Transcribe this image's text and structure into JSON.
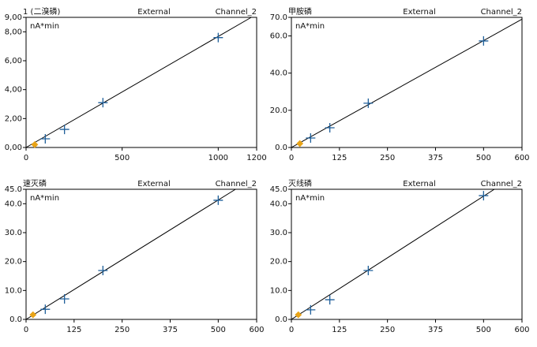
{
  "chart_data": [
    {
      "type": "scatter",
      "title": "1 (二溴磷)",
      "method": "External",
      "channel": "Channel_2",
      "ylabel": "nA*min",
      "xlim": [
        0,
        1200
      ],
      "xticks": [
        0,
        500,
        1000,
        1200
      ],
      "ylim": [
        0,
        9
      ],
      "yticks": [
        {
          "value": 0,
          "label": "0,00"
        },
        {
          "value": 2,
          "label": "2,00"
        },
        {
          "value": 4,
          "label": "4,00"
        },
        {
          "value": 6,
          "label": "6,00"
        },
        {
          "value": 8,
          "label": "8,00"
        },
        {
          "value": 9,
          "label": "9,00"
        }
      ],
      "series": [
        {
          "color": "#1f5f9a",
          "x": [
            100,
            200,
            400,
            1000
          ],
          "values": [
            0.6,
            1.25,
            3.1,
            7.6
          ]
        },
        {
          "color": "#e8a317",
          "x": [
            45
          ],
          "values": [
            0.2
          ]
        }
      ],
      "fit": {
        "color": "#000000",
        "x": [
          0,
          1172
        ],
        "values": [
          0,
          9
        ]
      }
    },
    {
      "type": "scatter",
      "title": "甲胺磷",
      "method": "External",
      "channel": "Channel_2",
      "ylabel": "nA*min",
      "xlim": [
        0,
        600
      ],
      "xticks": [
        0,
        125,
        250,
        375,
        500,
        600
      ],
      "ylim": [
        0,
        70
      ],
      "yticks": [
        {
          "value": 0,
          "label": "0.0"
        },
        {
          "value": 20,
          "label": "20.0"
        },
        {
          "value": 40,
          "label": "40.0"
        },
        {
          "value": 60,
          "label": "60.0"
        },
        {
          "value": 70,
          "label": "70.0"
        }
      ],
      "series": [
        {
          "color": "#1f5f9a",
          "x": [
            50,
            100,
            200,
            500
          ],
          "values": [
            5.1,
            10.6,
            23.8,
            57.3
          ]
        },
        {
          "color": "#e8a317",
          "x": [
            22
          ],
          "values": [
            2.1
          ]
        }
      ],
      "fit": {
        "color": "#000000",
        "x": [
          0,
          600
        ],
        "values": [
          0,
          69
        ]
      }
    },
    {
      "type": "scatter",
      "title": "速灭磷",
      "method": "External",
      "channel": "Channel_2",
      "ylabel": "nA*min",
      "xlim": [
        0,
        600
      ],
      "xticks": [
        0,
        125,
        250,
        375,
        500,
        600
      ],
      "ylim": [
        0,
        45
      ],
      "yticks": [
        {
          "value": 0,
          "label": "0.0"
        },
        {
          "value": 10,
          "label": "10.0"
        },
        {
          "value": 20,
          "label": "20.0"
        },
        {
          "value": 30,
          "label": "30.0"
        },
        {
          "value": 40,
          "label": "40.0"
        },
        {
          "value": 45,
          "label": "45.0"
        }
      ],
      "series": [
        {
          "color": "#1f5f9a",
          "x": [
            50,
            100,
            200,
            500
          ],
          "values": [
            3.5,
            7.1,
            16.9,
            41.2
          ]
        },
        {
          "color": "#e8a317",
          "x": [
            18
          ],
          "values": [
            1.6
          ]
        }
      ],
      "fit": {
        "color": "#000000",
        "x": [
          0,
          545
        ],
        "values": [
          0,
          45
        ]
      }
    },
    {
      "type": "scatter",
      "title": "灭线磷",
      "method": "External",
      "channel": "Channel_2",
      "ylabel": "nA*min",
      "xlim": [
        0,
        600
      ],
      "xticks": [
        0,
        125,
        250,
        375,
        500,
        600
      ],
      "ylim": [
        0,
        45
      ],
      "yticks": [
        {
          "value": 0,
          "label": "0.0"
        },
        {
          "value": 10,
          "label": "10.0"
        },
        {
          "value": 20,
          "label": "20.0"
        },
        {
          "value": 30,
          "label": "30.0"
        },
        {
          "value": 40,
          "label": "40.0"
        },
        {
          "value": 45,
          "label": "45.0"
        }
      ],
      "series": [
        {
          "color": "#1f5f9a",
          "x": [
            50,
            100,
            200,
            500
          ],
          "values": [
            3.3,
            6.8,
            16.9,
            42.8
          ]
        },
        {
          "color": "#e8a317",
          "x": [
            18
          ],
          "values": [
            1.6
          ]
        }
      ],
      "fit": {
        "color": "#000000",
        "x": [
          0,
          528
        ],
        "values": [
          0,
          45
        ]
      }
    }
  ]
}
